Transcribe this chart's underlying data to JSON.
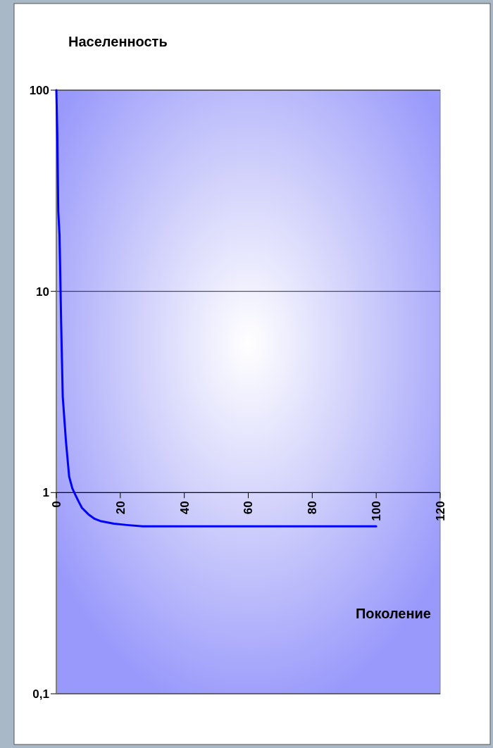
{
  "chart_data": {
    "type": "line",
    "ylabel": "Населенность",
    "xlabel": "Поколение",
    "log": "y",
    "grid": "y",
    "line_style": "solid",
    "xlim": [
      0,
      120
    ],
    "xticks": [
      0,
      20,
      40,
      60,
      80,
      100,
      120
    ],
    "ylim": [
      0.1,
      100
    ],
    "yticks": [
      {
        "value": 0.1,
        "label": "0,1"
      },
      1,
      10,
      100
    ],
    "series": [
      {
        "color": "#0000ff",
        "x": [
          0,
          0.3,
          0.6,
          1,
          1.5,
          2,
          3,
          4,
          5,
          6,
          7,
          8,
          10,
          12,
          14,
          16,
          18,
          22,
          27,
          100
        ],
        "values": [
          100,
          60,
          25,
          19,
          7,
          3,
          1.8,
          1.2,
          1.05,
          0.97,
          0.9,
          0.84,
          0.78,
          0.74,
          0.72,
          0.71,
          0.7,
          0.69,
          0.68,
          0.68
        ]
      }
    ]
  }
}
